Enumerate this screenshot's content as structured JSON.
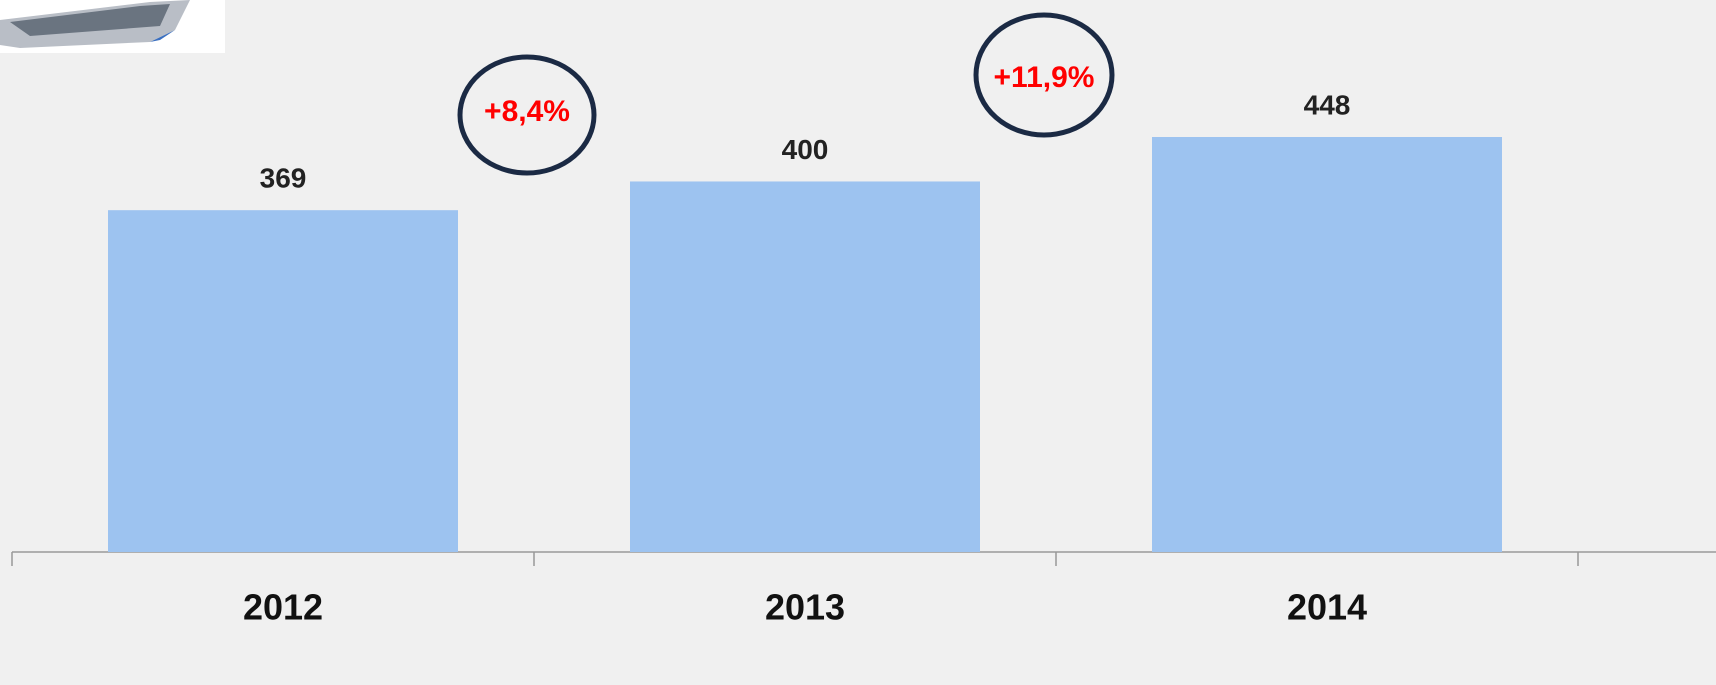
{
  "chart_data": {
    "type": "bar",
    "categories": [
      "2012",
      "2013",
      "2014"
    ],
    "values": [
      369,
      400,
      448
    ],
    "color": "#9dc3f0",
    "annotations": [
      "+8,4%",
      "+11,9%"
    ]
  }
}
